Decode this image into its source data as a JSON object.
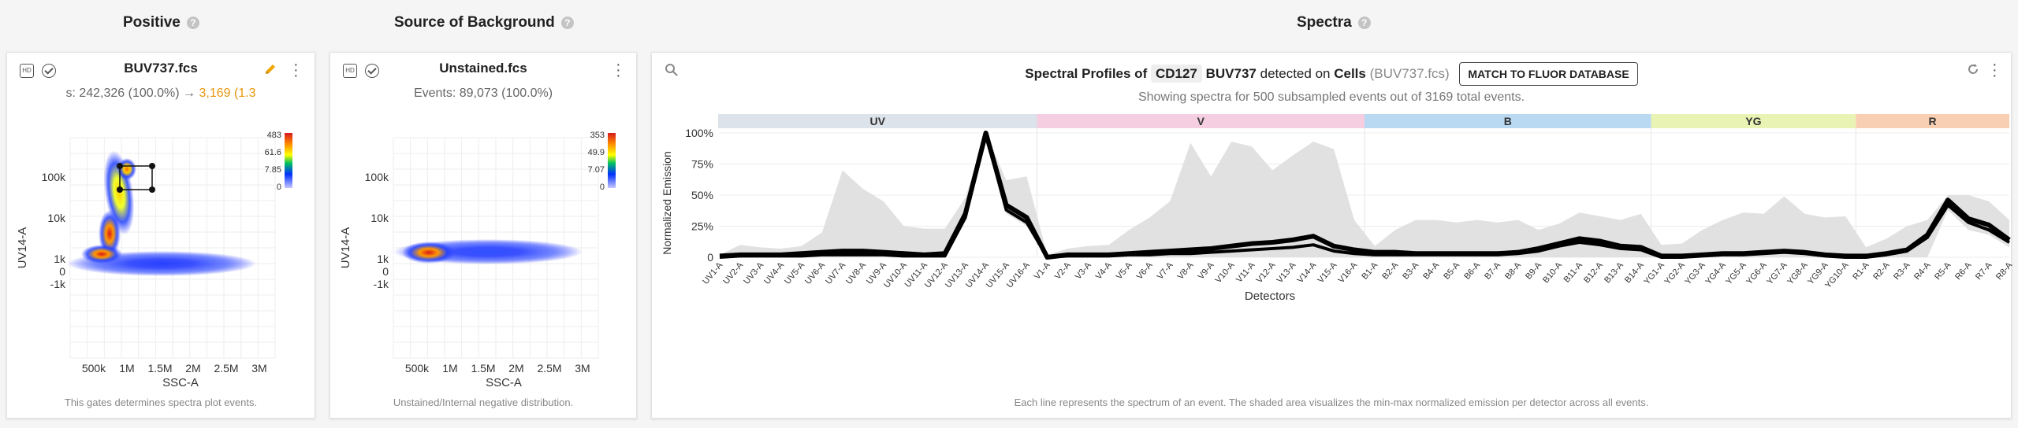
{
  "headings": {
    "positive": "Positive",
    "background": "Source of Background",
    "spectra": "Spectra"
  },
  "positive_card": {
    "title": "BUV737.fcs",
    "subtitle_events": "s: 242,326 (100.0%) →",
    "subtitle_gated": "3,169 (1.3",
    "footer": "This gates determines spectra plot events.",
    "x_label": "SSC-A",
    "y_label": "UV14-A",
    "x_ticks": [
      "500k",
      "1M",
      "1.5M",
      "2M",
      "2.5M",
      "3M"
    ],
    "y_ticks": [
      "100k",
      "10k",
      "1k",
      "0",
      "-1k"
    ],
    "colorbar_ticks": [
      "483",
      "61.6",
      "7.85",
      "0"
    ],
    "hd_icon": "HD",
    "edit_icon": "pencil-icon"
  },
  "background_card": {
    "title": "Unstained.fcs",
    "subtitle": "Events: 89,073 (100.0%)",
    "footer": "Unstained/Internal negative distribution.",
    "x_label": "SSC-A",
    "y_label": "UV14-A",
    "x_ticks": [
      "500k",
      "1M",
      "1.5M",
      "2M",
      "2.5M",
      "3M"
    ],
    "y_ticks": [
      "100k",
      "10k",
      "1k",
      "0",
      "-1k"
    ],
    "colorbar_ticks": [
      "353",
      "49.9",
      "7.07",
      "0"
    ],
    "hd_icon": "HD"
  },
  "spectra_card": {
    "title_prefix": "Spectral Profiles of",
    "marker": "CD127",
    "fluor": "BUV737",
    "detected_on": "detected on",
    "population": "Cells",
    "file": "(BUV737.fcs)",
    "button": "MATCH TO FLUOR DATABASE",
    "subtitle": "Showing spectra for 500 subsampled events out of 3169 total events.",
    "footer": "Each line represents the spectrum of an event. The shaded area visualizes the min-max normalized emission per detector across all events.",
    "colors": {
      "UV": "#dde3ea",
      "V": "#f5cfe1",
      "B": "#b9d9f2",
      "YG": "#e9f3b3",
      "R": "#f8cfb3"
    }
  },
  "chart_data": {
    "type": "line",
    "title": "",
    "xlabel": "Detectors",
    "ylabel": "Normalized Emission",
    "ylim": [
      0,
      1
    ],
    "y_ticks": [
      "0",
      "25%",
      "50%",
      "75%",
      "100%"
    ],
    "laser_bands": [
      {
        "name": "UV",
        "start": 0,
        "end": 15
      },
      {
        "name": "V",
        "start": 16,
        "end": 31
      },
      {
        "name": "B",
        "start": 32,
        "end": 45
      },
      {
        "name": "YG",
        "start": 46,
        "end": 55
      },
      {
        "name": "R",
        "start": 56,
        "end": 63
      }
    ],
    "categories": [
      "UV1-A",
      "UV2-A",
      "UV3-A",
      "UV4-A",
      "UV5-A",
      "UV6-A",
      "UV7-A",
      "UV8-A",
      "UV9-A",
      "UV10-A",
      "UV11-A",
      "UV12-A",
      "UV13-A",
      "UV14-A",
      "UV15-A",
      "UV16-A",
      "V1-A",
      "V2-A",
      "V3-A",
      "V4-A",
      "V5-A",
      "V6-A",
      "V7-A",
      "V8-A",
      "V9-A",
      "V10-A",
      "V11-A",
      "V12-A",
      "V13-A",
      "V14-A",
      "V15-A",
      "V16-A",
      "B1-A",
      "B2-A",
      "B3-A",
      "B4-A",
      "B5-A",
      "B6-A",
      "B7-A",
      "B8-A",
      "B9-A",
      "B10-A",
      "B11-A",
      "B12-A",
      "B13-A",
      "B14-A",
      "YG1-A",
      "YG2-A",
      "YG3-A",
      "YG4-A",
      "YG5-A",
      "YG6-A",
      "YG7-A",
      "YG8-A",
      "YG9-A",
      "YG10-A",
      "R1-A",
      "R2-A",
      "R3-A",
      "R4-A",
      "R5-A",
      "R6-A",
      "R7-A",
      "R8-A"
    ],
    "series": [
      {
        "name": "",
        "values": [
          0.01,
          0.02,
          0.02,
          0.02,
          0.03,
          0.04,
          0.05,
          0.05,
          0.04,
          0.03,
          0.02,
          0.03,
          0.35,
          1.0,
          0.42,
          0.32,
          0.0,
          0.02,
          0.02,
          0.02,
          0.03,
          0.04,
          0.05,
          0.06,
          0.07,
          0.09,
          0.11,
          0.12,
          0.14,
          0.17,
          0.09,
          0.06,
          0.04,
          0.04,
          0.03,
          0.03,
          0.03,
          0.03,
          0.03,
          0.04,
          0.07,
          0.11,
          0.15,
          0.13,
          0.09,
          0.08,
          0.01,
          0.01,
          0.02,
          0.03,
          0.03,
          0.04,
          0.05,
          0.04,
          0.02,
          0.01,
          0.01,
          0.03,
          0.06,
          0.18,
          0.46,
          0.31,
          0.26,
          0.14
        ]
      },
      {
        "name": "",
        "values": [
          0.0,
          0.01,
          0.01,
          0.01,
          0.01,
          0.02,
          0.02,
          0.02,
          0.02,
          0.01,
          0.01,
          0.01,
          0.32,
          0.99,
          0.38,
          0.28,
          0.0,
          0.01,
          0.01,
          0.01,
          0.02,
          0.02,
          0.03,
          0.03,
          0.04,
          0.05,
          0.06,
          0.07,
          0.08,
          0.1,
          0.05,
          0.03,
          0.02,
          0.02,
          0.02,
          0.02,
          0.02,
          0.02,
          0.02,
          0.03,
          0.05,
          0.09,
          0.12,
          0.1,
          0.07,
          0.06,
          0.0,
          0.0,
          0.01,
          0.02,
          0.02,
          0.03,
          0.04,
          0.03,
          0.01,
          0.0,
          0.0,
          0.02,
          0.05,
          0.16,
          0.42,
          0.28,
          0.22,
          0.12
        ]
      }
    ],
    "range_min": [
      0,
      0,
      0,
      0,
      0,
      0,
      0,
      0,
      0,
      0,
      0,
      0,
      0.3,
      0.98,
      0.35,
      0.25,
      0,
      0,
      0,
      0,
      0,
      0,
      0,
      0,
      0,
      0,
      0,
      0,
      0,
      0,
      0,
      0,
      0,
      0,
      0,
      0,
      0,
      0,
      0,
      0,
      0,
      0,
      0,
      0,
      0,
      0,
      0,
      0,
      0,
      0,
      0,
      0,
      0,
      0,
      0,
      0,
      0,
      0,
      0,
      0,
      0.38,
      0.22,
      0.18,
      0.08
    ],
    "range_max": [
      0.02,
      0.1,
      0.08,
      0.07,
      0.09,
      0.2,
      0.7,
      0.55,
      0.45,
      0.25,
      0.23,
      0.23,
      0.48,
      1.0,
      0.62,
      0.65,
      0.02,
      0.07,
      0.09,
      0.1,
      0.22,
      0.32,
      0.45,
      0.92,
      0.65,
      0.93,
      0.89,
      0.7,
      0.82,
      0.93,
      0.87,
      0.3,
      0.09,
      0.22,
      0.3,
      0.3,
      0.28,
      0.3,
      0.28,
      0.3,
      0.22,
      0.27,
      0.36,
      0.33,
      0.3,
      0.35,
      0.1,
      0.11,
      0.22,
      0.3,
      0.36,
      0.35,
      0.49,
      0.35,
      0.32,
      0.33,
      0.08,
      0.15,
      0.25,
      0.3,
      0.5,
      0.5,
      0.45,
      0.3
    ]
  }
}
